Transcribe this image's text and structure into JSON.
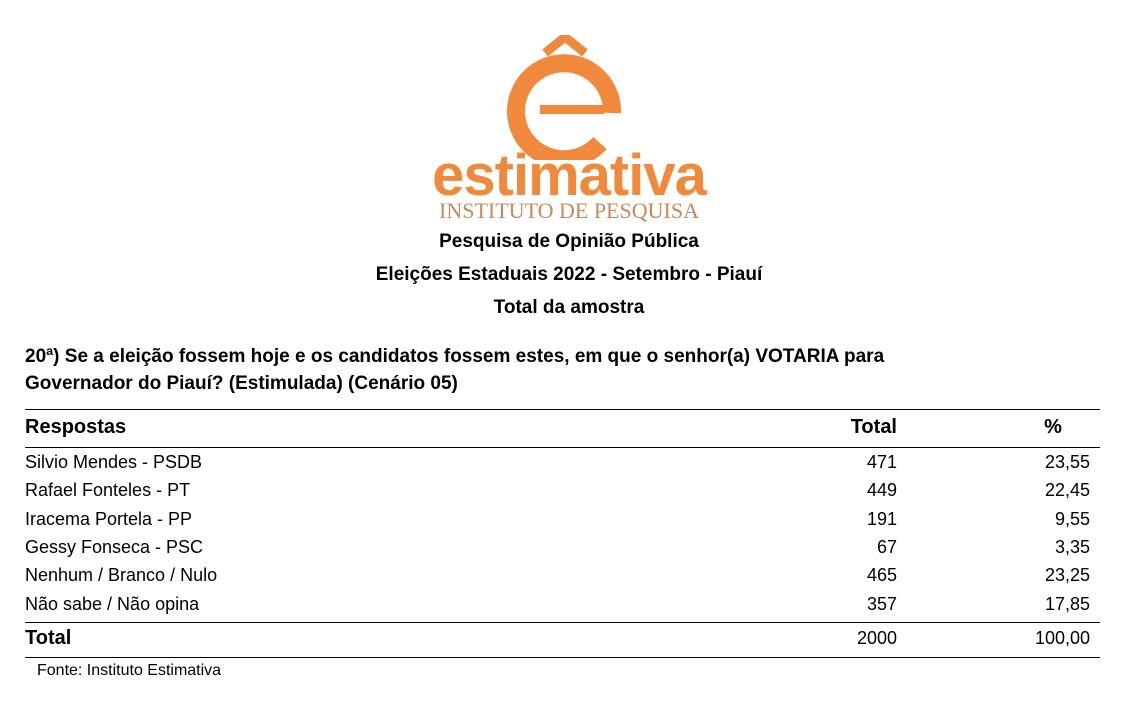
{
  "logo": {
    "name": "estimativa",
    "subtitle": "INSTITUTO DE PESQUISA"
  },
  "header": {
    "lines": [
      "Pesquisa de Opinião Pública",
      "Eleições Estaduais 2022 - Setembro - Piauí",
      "Total da amostra"
    ]
  },
  "question": [
    "20ª) Se a eleição fossem hoje e os candidatos fossem estes, em que o senhor(a) VOTARIA para",
    "Governador do Piauí? (Estimulada) (Cenário 05)"
  ],
  "table": {
    "columns": [
      "Respostas",
      "Total",
      "%"
    ],
    "rows": [
      [
        "Silvio Mendes - PSDB",
        "471",
        "23,55"
      ],
      [
        "Rafael Fonteles - PT",
        "449",
        "22,45"
      ],
      [
        "Iracema Portela - PP",
        "191",
        "9,55"
      ],
      [
        "Gessy Fonseca - PSC",
        "67",
        "3,35"
      ],
      [
        "Nenhum / Branco / Nulo",
        "465",
        "23,25"
      ],
      [
        "Não sabe / Não opina",
        "357",
        "17,85"
      ]
    ],
    "total": [
      "Total",
      "2000",
      "100,00"
    ]
  },
  "source": "Fonte: Instituto Estimativa"
}
